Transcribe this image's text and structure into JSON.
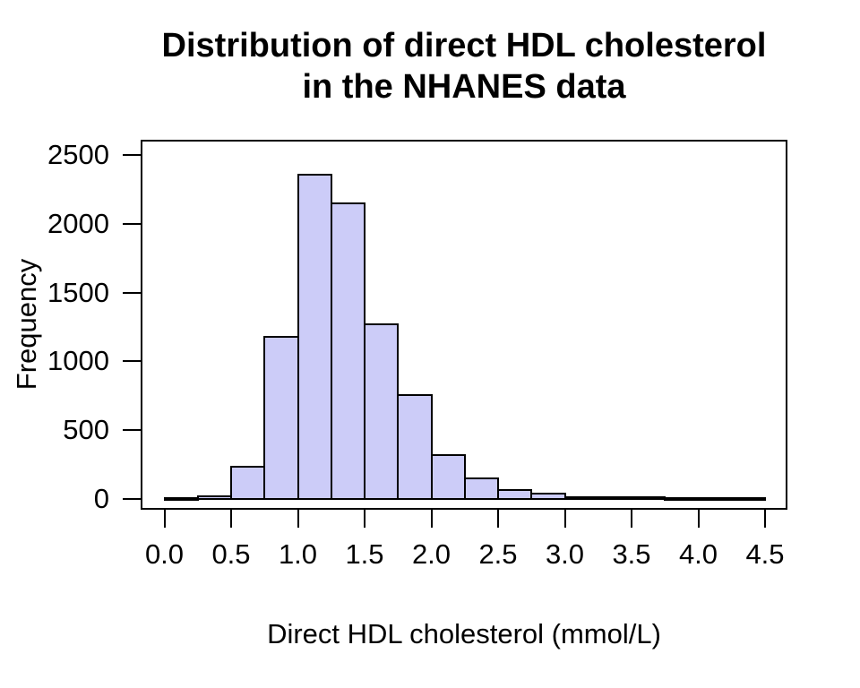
{
  "title": {
    "line1": "Distribution of direct HDL cholesterol",
    "line2": "in the NHANES data"
  },
  "chart_data": {
    "type": "bar",
    "subtype": "histogram",
    "title": "Distribution of direct HDL cholesterol in the NHANES data",
    "xlabel": "Direct HDL cholesterol (mmol/L)",
    "ylabel": "Frequency",
    "bin_width": 0.25,
    "bin_edges": [
      0.0,
      0.25,
      0.5,
      0.75,
      1.0,
      1.25,
      1.5,
      1.75,
      2.0,
      2.25,
      2.5,
      2.75,
      3.0,
      3.25,
      3.5,
      3.75,
      4.0,
      4.25,
      4.5
    ],
    "counts": [
      2,
      10,
      230,
      1170,
      2350,
      2145,
      1260,
      750,
      310,
      140,
      60,
      35,
      8,
      4,
      6,
      2,
      1,
      2
    ],
    "x_tick_values": [
      0.0,
      0.5,
      1.0,
      1.5,
      2.0,
      2.5,
      3.0,
      3.5,
      4.0,
      4.5
    ],
    "x_tick_labels": [
      "0.0",
      "0.5",
      "1.0",
      "1.5",
      "2.0",
      "2.5",
      "3.0",
      "3.5",
      "4.0",
      "4.5"
    ],
    "y_tick_values": [
      0,
      500,
      1000,
      1500,
      2000,
      2500
    ],
    "y_tick_labels": [
      "0",
      "500",
      "1000",
      "1500",
      "2000",
      "2500"
    ],
    "xlim": [
      0.0,
      4.5
    ],
    "ylim": [
      0,
      2500
    ],
    "grid": false,
    "legend_position": "none",
    "bar_fill_color": "#CCCCF8",
    "bar_border_color": "#000000",
    "axis_color": "#000000",
    "background_color": "#FFFFFF"
  }
}
